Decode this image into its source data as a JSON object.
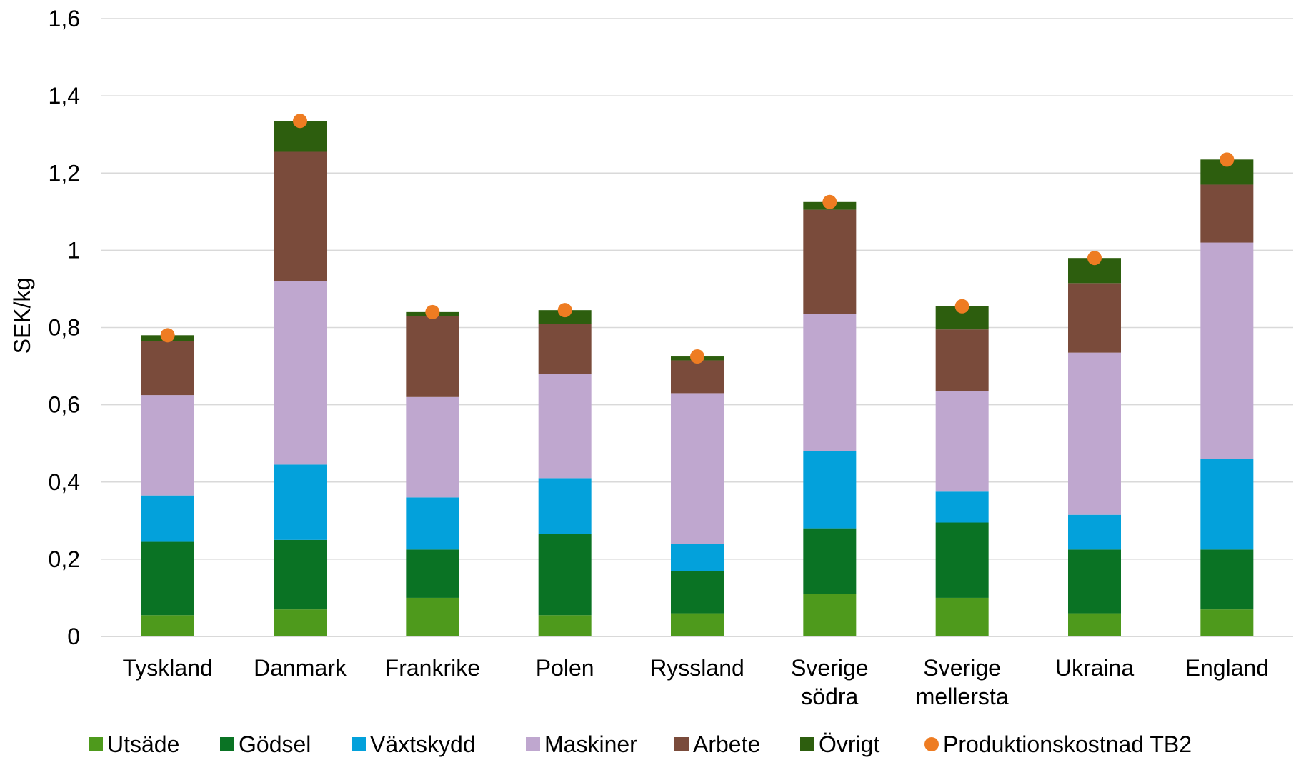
{
  "chart_data": {
    "type": "bar",
    "stacked": true,
    "title": "",
    "xlabel": "",
    "ylabel": "SEK/kg",
    "ylim": [
      0,
      1.6
    ],
    "yticks": [
      "0",
      "0,2",
      "0,4",
      "0,6",
      "0,8",
      "1",
      "1,2",
      "1,4",
      "1,6"
    ],
    "grid": true,
    "legend_position": "bottom",
    "categories": [
      [
        "Tyskland"
      ],
      [
        "Danmark"
      ],
      [
        "Frankrike"
      ],
      [
        "Polen"
      ],
      [
        "Ryssland"
      ],
      [
        "Sverige",
        "södra"
      ],
      [
        "Sverige",
        "mellersta"
      ],
      [
        "Ukraina"
      ],
      [
        "England"
      ]
    ],
    "series": [
      {
        "name": "Utsäde",
        "color": "#4e9a1c",
        "values": [
          0.055,
          0.07,
          0.1,
          0.055,
          0.06,
          0.11,
          0.1,
          0.06,
          0.07
        ]
      },
      {
        "name": "Gödsel",
        "color": "#0a7324",
        "values": [
          0.19,
          0.18,
          0.125,
          0.21,
          0.11,
          0.17,
          0.195,
          0.165,
          0.155
        ]
      },
      {
        "name": "Växtskydd",
        "color": "#03a1db",
        "values": [
          0.12,
          0.195,
          0.135,
          0.145,
          0.07,
          0.2,
          0.08,
          0.09,
          0.235
        ]
      },
      {
        "name": "Maskiner",
        "color": "#bfa7cf",
        "values": [
          0.26,
          0.475,
          0.26,
          0.27,
          0.39,
          0.355,
          0.26,
          0.42,
          0.56
        ]
      },
      {
        "name": "Arbete",
        "color": "#7a4b3b",
        "values": [
          0.14,
          0.335,
          0.21,
          0.13,
          0.085,
          0.27,
          0.16,
          0.18,
          0.15
        ]
      },
      {
        "name": "Övrigt",
        "color": "#2d5e0e",
        "values": [
          0.015,
          0.08,
          0.01,
          0.035,
          0.01,
          0.02,
          0.06,
          0.065,
          0.065
        ]
      }
    ],
    "markers": {
      "name": "Produktionskostnad TB2",
      "color": "#ee7c22",
      "values": [
        0.78,
        1.335,
        0.84,
        0.845,
        0.725,
        1.125,
        0.855,
        0.98,
        1.235
      ]
    }
  }
}
